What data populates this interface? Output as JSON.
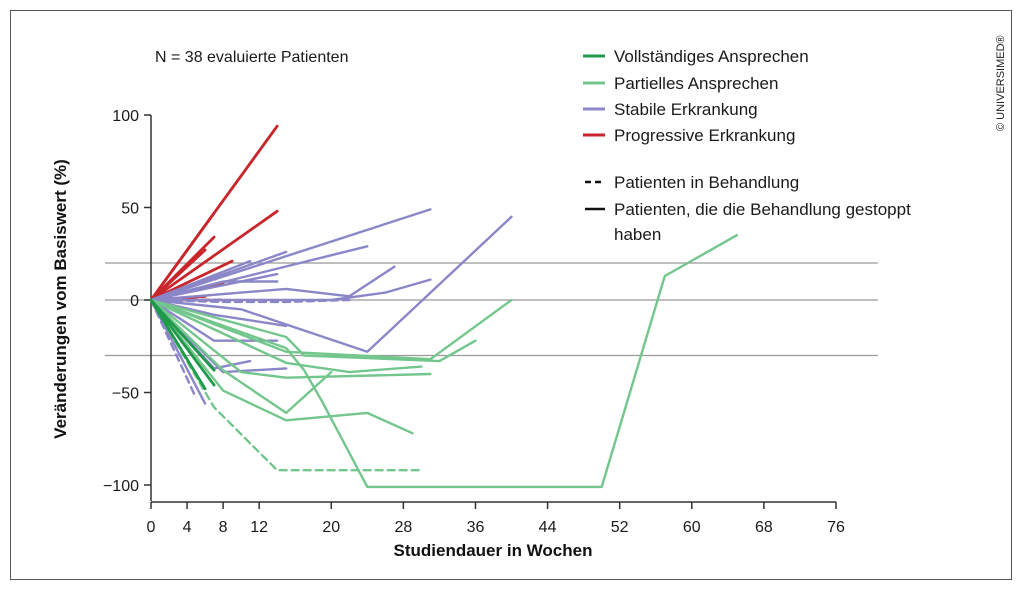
{
  "copyright": "© UNIVERSIMED®",
  "chart_data": {
    "type": "line",
    "note": "N = 38 evaluierte Patienten",
    "xlabel": "Studiendauer in Wochen",
    "ylabel": "Veränderungen vom Basiswert (%)",
    "xlim": [
      0,
      76
    ],
    "ylim": [
      -100,
      100
    ],
    "xticks": [
      0,
      4,
      8,
      12,
      20,
      28,
      36,
      44,
      52,
      60,
      68,
      76
    ],
    "yticks": [
      100,
      50,
      0,
      -50,
      -100
    ],
    "yticklabels": [
      "100",
      "50",
      "0",
      "−50",
      "−100"
    ],
    "reference_lines": [
      20,
      0,
      -30
    ],
    "colors": {
      "Vollständiges Ansprechen": "#1f9a4a",
      "Partielles Ansprechen": "#73c68c",
      "Stabile Erkrankung": "#8a86c8",
      "Progressive Erkrankung": "#c8262b",
      "axis": "#333333",
      "reference": "#999999"
    },
    "legend": {
      "categories": [
        "Vollständiges Ansprechen",
        "Partielles Ansprechen",
        "Stabile Erkrankung",
        "Progressive Erkrankung"
      ],
      "dashed_label": "Patienten in Behandlung",
      "solid_label_1": "Patienten, die die Behandlung gestoppt",
      "solid_label_2": "haben"
    },
    "series": [
      {
        "category": "Progressive Erkrankung",
        "dashed": false,
        "points": [
          [
            0,
            0
          ],
          [
            14,
            94
          ]
        ]
      },
      {
        "category": "Progressive Erkrankung",
        "dashed": false,
        "points": [
          [
            0,
            0
          ],
          [
            7,
            47
          ]
        ]
      },
      {
        "category": "Progressive Erkrankung",
        "dashed": false,
        "points": [
          [
            0,
            0
          ],
          [
            14,
            48
          ]
        ]
      },
      {
        "category": "Progressive Erkrankung",
        "dashed": false,
        "points": [
          [
            0,
            0
          ],
          [
            7,
            34
          ]
        ]
      },
      {
        "category": "Progressive Erkrankung",
        "dashed": false,
        "points": [
          [
            0,
            0
          ],
          [
            6,
            27
          ]
        ]
      },
      {
        "category": "Progressive Erkrankung",
        "dashed": false,
        "points": [
          [
            0,
            0
          ],
          [
            9,
            21
          ]
        ]
      },
      {
        "category": "Progressive Erkrankung",
        "dashed": false,
        "points": [
          [
            0,
            0
          ],
          [
            8,
            9
          ]
        ]
      },
      {
        "category": "Progressive Erkrankung",
        "dashed": false,
        "points": [
          [
            0,
            0
          ],
          [
            6,
            2
          ]
        ]
      },
      {
        "category": "Progressive Erkrankung",
        "dashed": true,
        "points": [
          [
            3,
            0
          ],
          [
            8,
            0
          ]
        ]
      },
      {
        "category": "Stabile Erkrankung",
        "dashed": false,
        "points": [
          [
            0,
            0
          ],
          [
            31,
            49
          ]
        ]
      },
      {
        "category": "Stabile Erkrankung",
        "dashed": false,
        "points": [
          [
            0,
            0
          ],
          [
            24,
            29
          ]
        ]
      },
      {
        "category": "Stabile Erkrankung",
        "dashed": false,
        "points": [
          [
            0,
            0
          ],
          [
            15,
            26
          ]
        ]
      },
      {
        "category": "Stabile Erkrankung",
        "dashed": false,
        "points": [
          [
            0,
            0
          ],
          [
            11,
            21
          ]
        ]
      },
      {
        "category": "Stabile Erkrankung",
        "dashed": false,
        "points": [
          [
            0,
            0
          ],
          [
            14,
            14
          ]
        ]
      },
      {
        "category": "Stabile Erkrankung",
        "dashed": false,
        "points": [
          [
            0,
            0
          ],
          [
            8,
            10
          ],
          [
            14,
            10
          ]
        ]
      },
      {
        "category": "Stabile Erkrankung",
        "dashed": false,
        "points": [
          [
            0,
            0
          ],
          [
            15,
            6
          ],
          [
            22,
            2
          ],
          [
            27,
            18
          ]
        ]
      },
      {
        "category": "Stabile Erkrankung",
        "dashed": false,
        "points": [
          [
            0,
            0
          ],
          [
            20,
            0
          ],
          [
            26,
            4
          ],
          [
            31,
            11
          ]
        ]
      },
      {
        "category": "Stabile Erkrankung",
        "dashed": false,
        "points": [
          [
            0,
            0
          ],
          [
            10,
            -5
          ],
          [
            24,
            -28
          ],
          [
            40,
            45
          ]
        ]
      },
      {
        "category": "Stabile Erkrankung",
        "dashed": false,
        "points": [
          [
            0,
            0
          ],
          [
            7,
            -8
          ],
          [
            15,
            -14
          ]
        ]
      },
      {
        "category": "Stabile Erkrankung",
        "dashed": false,
        "points": [
          [
            0,
            0
          ],
          [
            7,
            -22
          ],
          [
            14,
            -22
          ]
        ]
      },
      {
        "category": "Stabile Erkrankung",
        "dashed": false,
        "points": [
          [
            0,
            0
          ],
          [
            7,
            -37
          ],
          [
            11,
            -33
          ]
        ]
      },
      {
        "category": "Stabile Erkrankung",
        "dashed": false,
        "points": [
          [
            0,
            0
          ],
          [
            8,
            -39
          ],
          [
            15,
            -37
          ]
        ]
      },
      {
        "category": "Stabile Erkrankung",
        "dashed": false,
        "points": [
          [
            0,
            0
          ],
          [
            6,
            -56
          ]
        ]
      },
      {
        "category": "Stabile Erkrankung",
        "dashed": true,
        "points": [
          [
            0,
            0
          ],
          [
            8,
            -1
          ],
          [
            15,
            -1
          ],
          [
            22,
            0
          ]
        ]
      },
      {
        "category": "Stabile Erkrankung",
        "dashed": true,
        "points": [
          [
            0,
            0
          ],
          [
            5,
            -53
          ]
        ]
      },
      {
        "category": "Partielles Ansprechen",
        "dashed": false,
        "points": [
          [
            0,
            0
          ],
          [
            15,
            -20
          ],
          [
            17,
            -30
          ],
          [
            32,
            -33
          ],
          [
            36,
            -22
          ]
        ]
      },
      {
        "category": "Partielles Ansprechen",
        "dashed": false,
        "points": [
          [
            0,
            0
          ],
          [
            15,
            -28
          ],
          [
            31,
            -32
          ],
          [
            40,
            0
          ]
        ]
      },
      {
        "category": "Partielles Ansprechen",
        "dashed": false,
        "points": [
          [
            0,
            0
          ],
          [
            15,
            -34
          ],
          [
            22,
            -39
          ],
          [
            30,
            -36
          ]
        ]
      },
      {
        "category": "Partielles Ansprechen",
        "dashed": false,
        "points": [
          [
            0,
            0
          ],
          [
            10,
            -39
          ],
          [
            15,
            -42
          ],
          [
            31,
            -40
          ]
        ]
      },
      {
        "category": "Partielles Ansprechen",
        "dashed": false,
        "points": [
          [
            0,
            0
          ],
          [
            8,
            -38
          ],
          [
            15,
            -61
          ],
          [
            20,
            -39
          ]
        ]
      },
      {
        "category": "Partielles Ansprechen",
        "dashed": false,
        "points": [
          [
            0,
            0
          ],
          [
            8,
            -49
          ],
          [
            15,
            -65
          ],
          [
            24,
            -61
          ],
          [
            29,
            -72
          ]
        ]
      },
      {
        "category": "Partielles Ansprechen",
        "dashed": false,
        "points": [
          [
            0,
            0
          ],
          [
            15,
            -26
          ],
          [
            17,
            -38
          ],
          [
            19,
            -55
          ],
          [
            24,
            -101
          ],
          [
            50,
            -101
          ],
          [
            57,
            13
          ],
          [
            65,
            35
          ]
        ]
      },
      {
        "category": "Partielles Ansprechen",
        "dashed": true,
        "points": [
          [
            0,
            0
          ],
          [
            7,
            -58
          ],
          [
            14,
            -92
          ],
          [
            30,
            -92
          ]
        ]
      },
      {
        "category": "Vollständiges Ansprechen",
        "dashed": false,
        "points": [
          [
            0,
            0
          ],
          [
            7,
            -38
          ]
        ]
      },
      {
        "category": "Vollständiges Ansprechen",
        "dashed": false,
        "points": [
          [
            0,
            0
          ],
          [
            6,
            -48
          ]
        ]
      },
      {
        "category": "Vollständiges Ansprechen",
        "dashed": false,
        "points": [
          [
            0,
            0
          ],
          [
            7,
            -46
          ]
        ]
      }
    ]
  }
}
